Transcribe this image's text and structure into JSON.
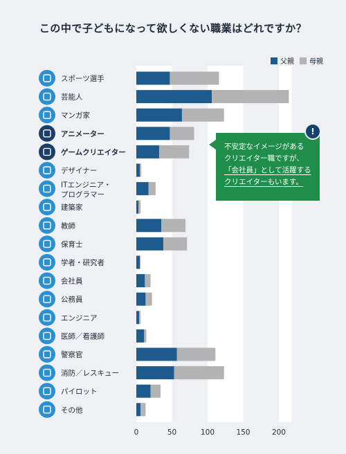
{
  "title": "この中で子どもになって欲しくない職業はどれですか？",
  "legend": {
    "father": "父親",
    "mother": "母親"
  },
  "colors": {
    "father": "#1d5a8e",
    "mother": "#b3b3b3",
    "icon_default": "#2b8fd0",
    "icon_highlight": "#1b3d66",
    "callout": "#1e8e4a"
  },
  "callout": {
    "badge": "!",
    "line1": "不安定なイメージがある",
    "line2": "クリエイター職ですが、",
    "line3": "「会社員」として活躍する",
    "line4": "クリエイターもいます。"
  },
  "chart_data": {
    "type": "bar",
    "stacked": true,
    "orientation": "horizontal",
    "title": "この中で子どもになって欲しくない職業はどれですか？",
    "categories": [
      "スポーツ選手",
      "芸能人",
      "マンガ家",
      "アニメーター",
      "ゲームクリエイター",
      "デザイナー",
      "ITエンジニア・プログラマー",
      "建築家",
      "教師",
      "保育士",
      "学者・研究者",
      "会社員",
      "公務員",
      "エンジニア",
      "医師／看護師",
      "警察官",
      "消防／レスキュー",
      "パイロット",
      "その他"
    ],
    "icons": [
      "sports-icon",
      "microphone-icon",
      "comic-icon",
      "tv-icon",
      "gamepad-icon",
      "design-tools-icon",
      "monitor-icon",
      "blueprint-icon",
      "book-icon",
      "apron-icon",
      "document-icon",
      "briefcase-icon",
      "building-icon",
      "gear-icon",
      "stethoscope-icon",
      "police-cap-icon",
      "warning-icon",
      "airplane-icon",
      "more-icon"
    ],
    "highlighted": [
      false,
      false,
      false,
      true,
      true,
      false,
      false,
      false,
      false,
      false,
      false,
      false,
      false,
      false,
      false,
      false,
      false,
      false,
      false
    ],
    "series": [
      {
        "name": "父親",
        "values": [
          47,
          106,
          64,
          47,
          32,
          5,
          17,
          3,
          35,
          38,
          5,
          12,
          13,
          4,
          11,
          57,
          53,
          20,
          6
        ]
      },
      {
        "name": "母親",
        "values": [
          69,
          108,
          59,
          34,
          42,
          2,
          10,
          3,
          34,
          33,
          1,
          8,
          9,
          2,
          3,
          54,
          70,
          14,
          7
        ]
      }
    ],
    "xticks": [
      0,
      50,
      100,
      150,
      200
    ],
    "xlim": [
      0,
      220
    ],
    "grid": false,
    "legend_position": "top-right"
  }
}
